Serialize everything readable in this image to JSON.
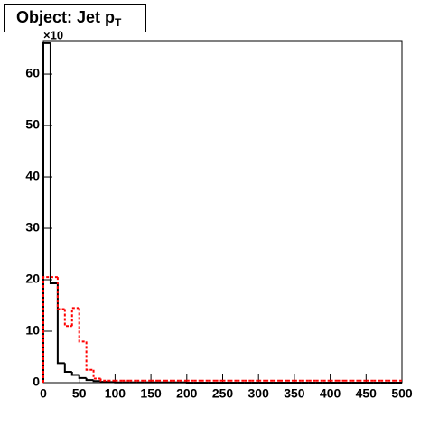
{
  "chart_data": {
    "type": "histogram",
    "title": "Object: Jet p",
    "title_subscript": "T",
    "y_multiplier": "×10",
    "bins": [
      0,
      10,
      20,
      30,
      40,
      50,
      60,
      70,
      80,
      90,
      100,
      110,
      120,
      130,
      140,
      150,
      160,
      170,
      180,
      190,
      200,
      210,
      220,
      230,
      240,
      250,
      260,
      270,
      280,
      290,
      300,
      310,
      320,
      330,
      340,
      350,
      360,
      370,
      380,
      390,
      400,
      410,
      420,
      430,
      440,
      450,
      460,
      470,
      480,
      490,
      500
    ],
    "series": [
      {
        "color": "#000000",
        "linestyle": "solid",
        "values": [
          66,
          19.3,
          3.8,
          2.1,
          1.5,
          0.9,
          0.5,
          0.3,
          0.15,
          0.1,
          0.05,
          0.05,
          0.05,
          0.05,
          0.05,
          0.05,
          0.05,
          0.05,
          0.05,
          0.05,
          0,
          0,
          0,
          0,
          0,
          0,
          0,
          0,
          0,
          0,
          0,
          0,
          0,
          0,
          0,
          0,
          0,
          0,
          0,
          0,
          0,
          0,
          0,
          0,
          0,
          0,
          0,
          0,
          0,
          0
        ]
      },
      {
        "color": "#ff0000",
        "linestyle": "dashed",
        "values": [
          20.5,
          20.5,
          14.3,
          11,
          14.5,
          8,
          2.5,
          0.8,
          0.4,
          0.4,
          0.4,
          0.4,
          0.4,
          0.4,
          0.4,
          0.4,
          0.4,
          0.4,
          0.4,
          0.4,
          0.4,
          0.4,
          0.4,
          0.4,
          0.4,
          0.4,
          0.4,
          0.4,
          0.4,
          0.4,
          0.4,
          0.4,
          0.4,
          0.4,
          0.4,
          0.4,
          0.4,
          0.4,
          0.4,
          0.4,
          0.4,
          0.4,
          0.4,
          0.4,
          0.4,
          0.4,
          0.4,
          0.4,
          0.4,
          0.4
        ]
      }
    ],
    "xlim": [
      0,
      500
    ],
    "xticks": [
      0,
      50,
      100,
      150,
      200,
      250,
      300,
      350,
      400,
      450,
      500
    ],
    "ylim": [
      0,
      66.5
    ],
    "yticks": [
      0,
      10,
      20,
      30,
      40,
      50,
      60
    ]
  }
}
